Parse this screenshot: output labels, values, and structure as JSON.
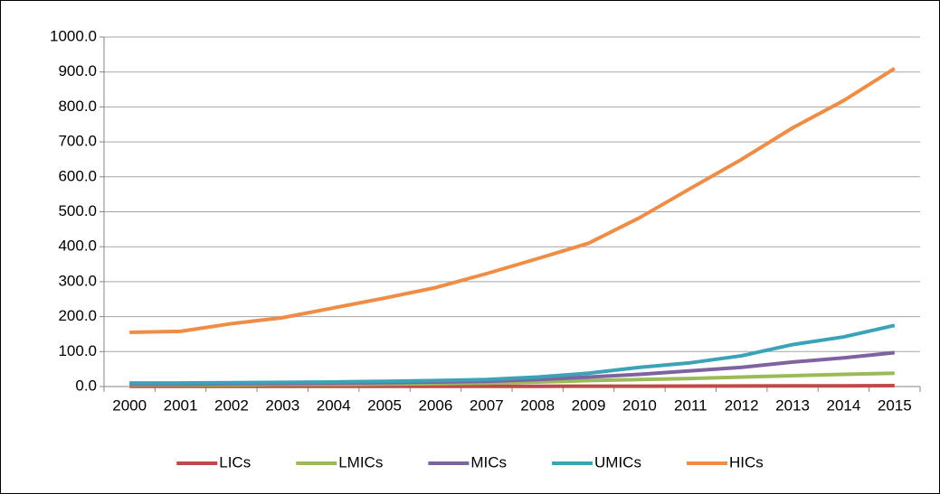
{
  "chart_data": {
    "type": "line",
    "categories": [
      "2000",
      "2001",
      "2002",
      "2003",
      "2004",
      "2005",
      "2006",
      "2007",
      "2008",
      "2009",
      "2010",
      "2011",
      "2012",
      "2013",
      "2014",
      "2015"
    ],
    "series": [
      {
        "name": "LICs",
        "color": "#be4b48",
        "values": [
          0.5,
          0.5,
          0.5,
          0.5,
          0.5,
          0.6,
          0.6,
          0.7,
          0.8,
          0.9,
          1,
          1.2,
          1.5,
          1.8,
          2,
          2.5
        ]
      },
      {
        "name": "LMICs",
        "color": "#9bbb59",
        "values": [
          5,
          5,
          5,
          6,
          6,
          7,
          8,
          10,
          13,
          17,
          20,
          23,
          27,
          31,
          35,
          38
        ]
      },
      {
        "name": "MICs",
        "color": "#7f63a1",
        "values": [
          7,
          7,
          8,
          9,
          10,
          11,
          13,
          15,
          20,
          27,
          35,
          45,
          55,
          70,
          82,
          97
        ]
      },
      {
        "name": "UMICs",
        "color": "#3ba3b8",
        "values": [
          10,
          10,
          11,
          12,
          13,
          15,
          17,
          20,
          27,
          38,
          55,
          68,
          88,
          120,
          142,
          175
        ]
      },
      {
        "name": "HICs",
        "color": "#ef8c45",
        "values": [
          155,
          158,
          180,
          197,
          225,
          253,
          283,
          323,
          366,
          410,
          483,
          567,
          650,
          740,
          818,
          910
        ]
      }
    ],
    "ylim": [
      0,
      1000
    ],
    "yticks": [
      {
        "value": 0,
        "label": "0.0"
      },
      {
        "value": 100,
        "label": "100.0"
      },
      {
        "value": 200,
        "label": "200.0"
      },
      {
        "value": 300,
        "label": "300.0"
      },
      {
        "value": 400,
        "label": "400.0"
      },
      {
        "value": 500,
        "label": "500.0"
      },
      {
        "value": 600,
        "label": "600.0"
      },
      {
        "value": 700,
        "label": "700.0"
      },
      {
        "value": 800,
        "label": "800.0"
      },
      {
        "value": 900,
        "label": "900.0"
      },
      {
        "value": 1000,
        "label": "1000.0"
      }
    ],
    "grid": true,
    "legend": "bottom"
  }
}
